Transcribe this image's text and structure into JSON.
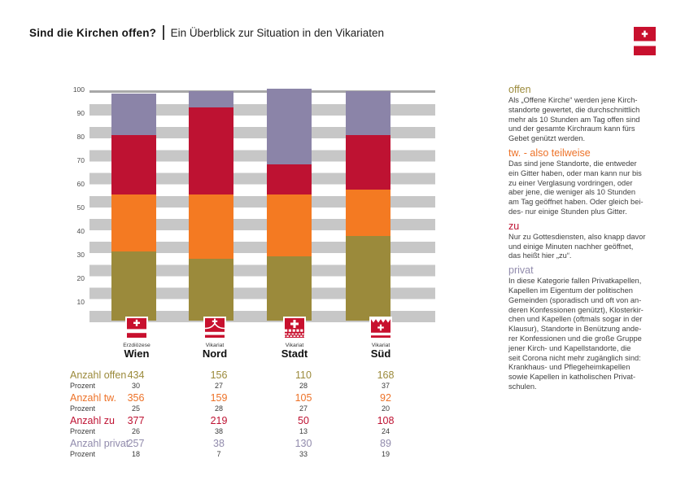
{
  "header": {
    "title": "Sind die Kirchen offen?",
    "subtitle": "Ein Überblick zur Situation in den Vikariaten"
  },
  "chart_data": {
    "type": "bar",
    "stacked": true,
    "value_unit": "percent",
    "ylim": [
      0,
      100
    ],
    "yticks": [
      100,
      90,
      80,
      70,
      60,
      50,
      40,
      30,
      20,
      10
    ],
    "grid": "horizontal gray bands",
    "categories": [
      {
        "region_type": "Erzdiözese",
        "name": "Wien",
        "crest": "wien"
      },
      {
        "region_type": "Vikariat",
        "name": "Nord",
        "crest": "nord"
      },
      {
        "region_type": "Vikariat",
        "name": "Stadt",
        "crest": "stadt"
      },
      {
        "region_type": "Vikariat",
        "name": "Süd",
        "crest": "sued"
      }
    ],
    "series": [
      {
        "name": "offen",
        "color": "#9B8A3B",
        "percent": [
          30,
          27,
          28,
          37
        ],
        "anzahl": [
          434,
          156,
          110,
          168
        ]
      },
      {
        "name": "tw.",
        "color": "#F47A22",
        "percent": [
          25,
          28,
          27,
          20
        ],
        "anzahl": [
          356,
          159,
          105,
          92
        ]
      },
      {
        "name": "zu",
        "color": "#BE1232",
        "percent": [
          26,
          38,
          13,
          24
        ],
        "anzahl": [
          377,
          219,
          50,
          108
        ]
      },
      {
        "name": "privat",
        "color": "#8B84A8",
        "percent": [
          18,
          7,
          33,
          19
        ],
        "anzahl": [
          257,
          38,
          130,
          89
        ]
      }
    ]
  },
  "table": {
    "rows": [
      {
        "label": "Anzahl offen",
        "color": "#9B8A3B",
        "values": [
          "434",
          "156",
          "110",
          "168"
        ],
        "sub_label": "Prozent",
        "percents": [
          "30",
          "27",
          "28",
          "37"
        ]
      },
      {
        "label": "Anzahl tw.",
        "color": "#ED7228",
        "values": [
          "356",
          "159",
          "105",
          "92"
        ],
        "sub_label": "Prozent",
        "percents": [
          "25",
          "28",
          "27",
          "20"
        ]
      },
      {
        "label": "Anzahl zu",
        "color": "#BE1232",
        "values": [
          "377",
          "219",
          "50",
          "108"
        ],
        "sub_label": "Prozent",
        "percents": [
          "26",
          "38",
          "13",
          "24"
        ]
      },
      {
        "label": "Anzahl privat",
        "color": "#918BAC",
        "values": [
          "257",
          "38",
          "130",
          "89"
        ],
        "sub_label": "Prozent",
        "percents": [
          "18",
          "7",
          "33",
          "19"
        ]
      }
    ]
  },
  "notes": [
    {
      "heading": "offen",
      "color": "#9B8A3B",
      "body": "Als „Offene Kirche“ werden jene Kirch-\nstandorte gewertet, die durchschnittlich\nmehr als 10 Stunden am Tag offen sind\nund der gesamte Kirchraum kann fürs\nGebet genützt werden."
    },
    {
      "heading": "tw. - also teilweise",
      "color": "#ED7228",
      "body": "Das sind jene Standorte, die entweder\nein Gitter haben, oder man kann nur bis\nzu einer Verglasung vordringen, oder\naber jene, die weniger als 10 Stunden\nam Tag geöffnet haben. Oder gleich bei-\ndes- nur  einige Stunden  plus Gitter."
    },
    {
      "heading": "zu",
      "color": "#BE1232",
      "body": "Nur zu Gottesdiensten, also knapp davor\nund einige Minuten nachher geöffnet,\ndas heißt hier „zu“."
    },
    {
      "heading": "privat",
      "color": "#918BAC",
      "body": "In diese Kategorie fallen Privatkapellen,\nKapellen im Eigentum der politischen\nGemeinden (sporadisch und oft von an-\nderen Konfessionen genützt), Klosterkir-\nchen und Kapellen (oftmals sogar in der\nKlausur), Standorte in Benützung ande-\nrer Konfessionen und die große Gruppe\njener Kirch- und Kapellstandorte, die\nseit Corona nicht mehr zugänglich sind:\nKrankhaus- und Pflegeheimkapellen\nsowie Kapellen in katholischen Privat-\nschulen."
    }
  ]
}
